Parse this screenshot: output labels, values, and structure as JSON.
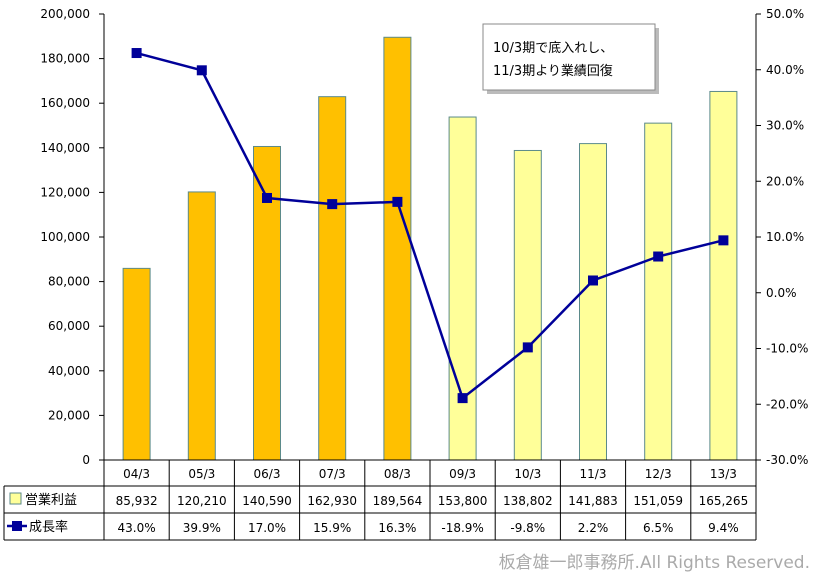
{
  "chart_data": {
    "type": "bar+line",
    "categories": [
      "04/3",
      "05/3",
      "06/3",
      "07/3",
      "08/3",
      "09/3",
      "10/3",
      "11/3",
      "12/3",
      "13/3"
    ],
    "series": [
      {
        "name": "営業利益",
        "type": "bar",
        "axis": "left",
        "values": [
          85932,
          120210,
          140590,
          162930,
          189564,
          153800,
          138802,
          141883,
          151059,
          165265
        ],
        "labels": [
          "85,932",
          "120,210",
          "140,590",
          "162,930",
          "189,564",
          "153,800",
          "138,802",
          "141,883",
          "151,059",
          "165,265"
        ],
        "colors": [
          "#FFC000",
          "#FFC000",
          "#FFC000",
          "#FFC000",
          "#FFC000",
          "#FFFF99",
          "#FFFF99",
          "#FFFF99",
          "#FFFF99",
          "#FFFF99"
        ],
        "legend_color": "#FFFF99"
      },
      {
        "name": "成長率",
        "type": "line",
        "axis": "right",
        "values": [
          43.0,
          39.9,
          17.0,
          15.9,
          16.3,
          -18.9,
          -9.8,
          2.2,
          6.5,
          9.4
        ],
        "labels": [
          "43.0%",
          "39.9%",
          "17.0%",
          "15.9%",
          "16.3%",
          "-18.9%",
          "-9.8%",
          "2.2%",
          "6.5%",
          "9.4%"
        ],
        "color": "#000099"
      }
    ],
    "y_left": {
      "range": [
        0,
        200000
      ],
      "ticks": [
        "0",
        "20,000",
        "40,000",
        "60,000",
        "80,000",
        "100,000",
        "120,000",
        "140,000",
        "160,000",
        "180,000",
        "200,000"
      ]
    },
    "y_right": {
      "range": [
        -30,
        50
      ],
      "ticks": [
        "-30.0%",
        "-20.0%",
        "-10.0%",
        "0.0%",
        "10.0%",
        "20.0%",
        "30.0%",
        "40.0%",
        "50.0%"
      ]
    },
    "grid": false,
    "legend": "data-table",
    "annotation": [
      "10/3期で底入れし、",
      "11/3期より業績回復"
    ]
  },
  "copyright": "板倉雄一郎事務所.All Rights Reserved."
}
